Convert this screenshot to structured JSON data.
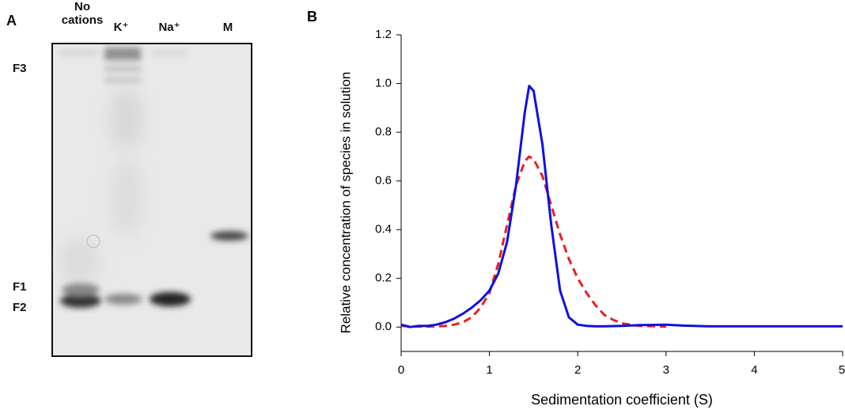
{
  "panel_a": {
    "label": "A",
    "lanes": [
      "No cations",
      "K⁺",
      "Na⁺",
      "M"
    ],
    "bands": [
      "F3",
      "F1",
      "F2"
    ]
  },
  "chart_data": {
    "type": "line",
    "panel_label": "B",
    "x_label": "Sedimentation coefficient (S)",
    "y_label": "Relative concentration of species in solution",
    "xlim": [
      0,
      5
    ],
    "ylim": [
      -0.1,
      1.2
    ],
    "xticks": [
      0,
      1,
      2,
      3,
      4,
      5
    ],
    "yticks": [
      {
        "value": 0,
        "label": "0.0"
      },
      {
        "value": 0.2,
        "label": "0.2"
      },
      {
        "value": 0.4,
        "label": "0.4"
      },
      {
        "value": 0.6,
        "label": "0.6"
      },
      {
        "value": 0.8,
        "label": "0.8"
      },
      {
        "value": 1.0,
        "label": "1.0"
      },
      {
        "value": 1.2,
        "label": "1.2"
      }
    ],
    "x": [
      0,
      0.1,
      0.2,
      0.3,
      0.4,
      0.5,
      0.6,
      0.7,
      0.8,
      0.9,
      1.0,
      1.1,
      1.2,
      1.3,
      1.4,
      1.45,
      1.5,
      1.6,
      1.7,
      1.8,
      1.9,
      2.0,
      2.1,
      2.2,
      2.3,
      2.4,
      2.5,
      2.7,
      3.0,
      3.2,
      3.5,
      4.0,
      4.5,
      5.0
    ],
    "series": [
      {
        "color": "#1010e0",
        "dashed": false,
        "values": [
          0.01,
          0.0,
          0.005,
          0.005,
          0.01,
          0.02,
          0.035,
          0.055,
          0.08,
          0.11,
          0.15,
          0.22,
          0.35,
          0.58,
          0.88,
          0.99,
          0.97,
          0.75,
          0.42,
          0.15,
          0.04,
          0.01,
          0.005,
          0.003,
          0.003,
          0.004,
          0.005,
          0.008,
          0.01,
          0.006,
          0.003,
          0.003,
          0.003,
          0.003
        ]
      },
      {
        "color": "#e82020",
        "dashed": true,
        "values": [
          0.005,
          0.003,
          0.002,
          0.002,
          0.003,
          0.005,
          0.01,
          0.02,
          0.04,
          0.08,
          0.14,
          0.26,
          0.42,
          0.58,
          0.68,
          0.7,
          0.69,
          0.62,
          0.5,
          0.38,
          0.28,
          0.2,
          0.14,
          0.09,
          0.05,
          0.03,
          0.015,
          0.005,
          0.002,
          null,
          null,
          null,
          null,
          null
        ]
      }
    ]
  }
}
